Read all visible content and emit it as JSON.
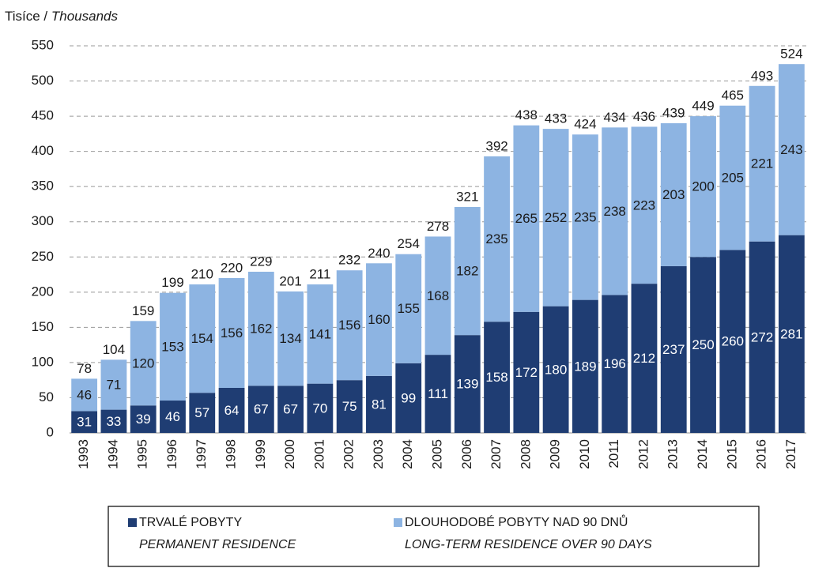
{
  "chart_data": {
    "type": "stacked_bar",
    "ylabel": {
      "cz": "Tisíce /",
      "en": "Thousands"
    },
    "categories": [
      "1993",
      "1994",
      "1995",
      "1996",
      "1997",
      "1998",
      "1999",
      "2000",
      "2001",
      "2002",
      "2003",
      "2004",
      "2005",
      "2006",
      "2007",
      "2008",
      "2009",
      "2010",
      "2011",
      "2012",
      "2013",
      "2014",
      "2015",
      "2016",
      "2017"
    ],
    "series": [
      {
        "name": "TRVALÉ POBYTY",
        "name_en": "PERMANENT RESIDENCE",
        "color": "#1f3d73",
        "label_color": "#ffffff",
        "values": [
          31,
          33,
          39,
          46,
          57,
          64,
          67,
          67,
          70,
          75,
          81,
          99,
          111,
          139,
          158,
          172,
          180,
          189,
          196,
          212,
          237,
          250,
          260,
          272,
          281
        ]
      },
      {
        "name": "DLOUHODOBÉ POBYTY NAD 90 DNŮ",
        "name_en": "LONG-TERM RESIDENCE OVER 90 DAYS",
        "color": "#8db4e2",
        "label_color": "#1a1a1a",
        "values": [
          46,
          71,
          120,
          153,
          154,
          156,
          162,
          134,
          141,
          156,
          160,
          155,
          168,
          182,
          235,
          265,
          252,
          235,
          238,
          223,
          203,
          200,
          205,
          221,
          243
        ]
      }
    ],
    "totals": [
      78,
      104,
      159,
      199,
      210,
      220,
      229,
      201,
      211,
      232,
      240,
      254,
      278,
      321,
      392,
      438,
      433,
      424,
      434,
      436,
      439,
      449,
      465,
      493,
      524
    ],
    "ylim": [
      0,
      550
    ],
    "yticks": [
      0,
      50,
      100,
      150,
      200,
      250,
      300,
      350,
      400,
      450,
      500,
      550
    ],
    "grid": true
  }
}
